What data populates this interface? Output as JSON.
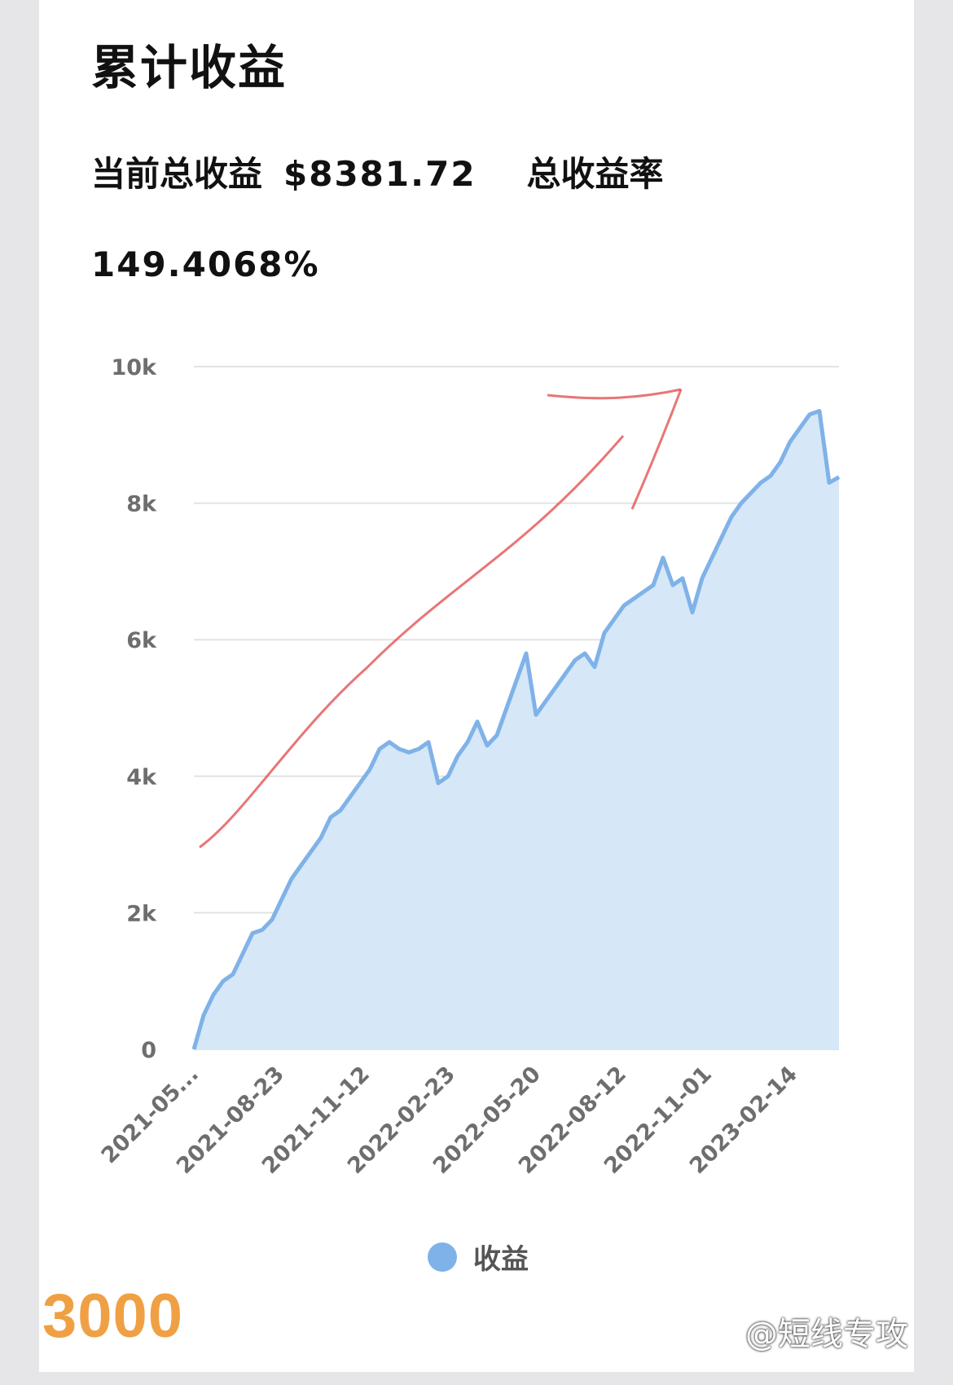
{
  "header": {
    "title": "累计收益",
    "current_label": "当前总收益",
    "current_value": "$8381.72",
    "rate_label": "总收益率",
    "rate_value": "149.4068%"
  },
  "chart_data": {
    "type": "area",
    "title": "",
    "xlabel": "",
    "ylabel": "",
    "ylim": [
      0,
      10000
    ],
    "yticks": [
      0,
      2000,
      4000,
      6000,
      8000,
      10000
    ],
    "ytick_labels": [
      "0",
      "2k",
      "4k",
      "6k",
      "8k",
      "10k"
    ],
    "xtick_labels": [
      "2021-05...",
      "2021-08-23",
      "2021-11-12",
      "2022-02-23",
      "2022-05-20",
      "2022-08-12",
      "2022-11-01",
      "2023-02-14"
    ],
    "grid": true,
    "legend_position": "bottom",
    "series": [
      {
        "name": "收益",
        "color": "#7fb2e8",
        "fill": "#d6e7f8",
        "values": [
          0,
          500,
          800,
          1000,
          1100,
          1400,
          1700,
          1750,
          1900,
          2200,
          2500,
          2700,
          2900,
          3100,
          3400,
          3500,
          3700,
          3900,
          4100,
          4400,
          4500,
          4400,
          4350,
          4400,
          4500,
          3900,
          4000,
          4300,
          4500,
          4800,
          4450,
          4600,
          5000,
          5400,
          5800,
          4900,
          5100,
          5300,
          5500,
          5700,
          5800,
          5600,
          6100,
          6300,
          6500,
          6600,
          6700,
          6800,
          7200,
          6800,
          6900,
          6400,
          6900,
          7200,
          7500,
          7800,
          8000,
          8150,
          8300,
          8400,
          8600,
          8900,
          9100,
          9300,
          9350,
          8300,
          8381.72
        ]
      }
    ],
    "annotations": [
      {
        "type": "hand-drawn-arrow",
        "color": "#e04848"
      }
    ],
    "overlay_text": "3000"
  },
  "watermark": {
    "text": "@短线专攻"
  }
}
